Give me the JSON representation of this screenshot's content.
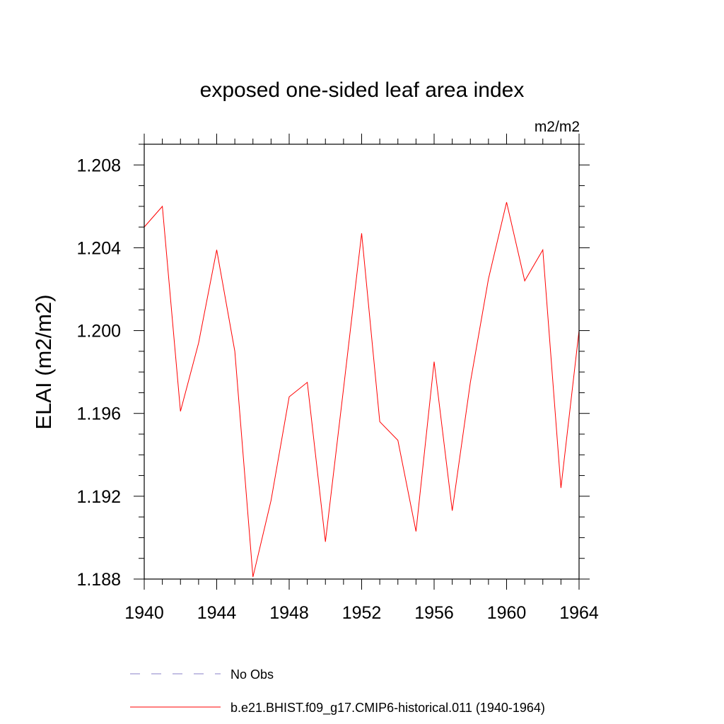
{
  "chart_data": {
    "type": "line",
    "title": "exposed one-sided leaf area index",
    "units_label": "m2/m2",
    "ylabel": "ELAI  (m2/m2)",
    "xlabel": "",
    "xlim": [
      1940,
      1964
    ],
    "ylim": [
      1.188,
      1.209
    ],
    "x_ticks": [
      1940,
      1944,
      1948,
      1952,
      1956,
      1960,
      1964
    ],
    "y_ticks": [
      "1.188",
      "1.192",
      "1.196",
      "1.200",
      "1.204",
      "1.208"
    ],
    "grid": false,
    "legend_position": "bottom",
    "series": [
      {
        "name": "b.e21.BHIST.f09_g17.CMIP6-historical.011 (1940-1964)",
        "color": "#ff0000",
        "dash": "solid",
        "x": [
          1940,
          1941,
          1942,
          1943,
          1944,
          1945,
          1946,
          1947,
          1948,
          1949,
          1950,
          1951,
          1952,
          1953,
          1954,
          1955,
          1956,
          1957,
          1958,
          1959,
          1960,
          1961,
          1962,
          1963,
          1964
        ],
        "values": [
          1.205,
          1.206,
          1.1961,
          1.1994,
          1.2039,
          1.199,
          1.1881,
          1.1918,
          1.1968,
          1.1975,
          1.1898,
          1.1972,
          1.2047,
          1.1956,
          1.1947,
          1.1903,
          1.1985,
          1.1913,
          1.1975,
          1.2025,
          1.2062,
          1.2024,
          1.2039,
          1.1924,
          1.2
        ]
      }
    ],
    "legend": [
      {
        "label": "No Obs",
        "color": "#8a80c8",
        "dash": "dashed"
      },
      {
        "label": "b.e21.BHIST.f09_g17.CMIP6-historical.011 (1940-1964)",
        "color": "#ff0000",
        "dash": "solid"
      }
    ]
  }
}
